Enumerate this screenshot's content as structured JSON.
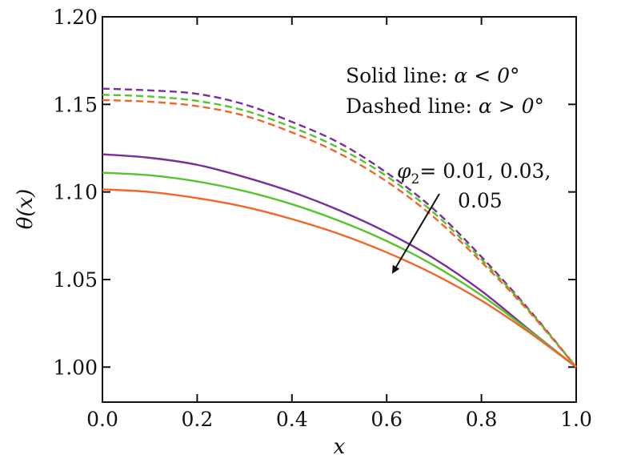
{
  "chart_data": {
    "type": "line",
    "xlabel": "x",
    "ylabel": "θ(x)",
    "xlim": [
      0.0,
      1.0
    ],
    "ylim": [
      0.98,
      1.2
    ],
    "x_ticks": [
      "0.0",
      "0.2",
      "0.4",
      "0.6",
      "0.8",
      "1.0"
    ],
    "y_ticks": [
      "1.00",
      "1.05",
      "1.10",
      "1.15",
      "1.20"
    ],
    "x": [
      0.0,
      0.1,
      0.2,
      0.3,
      0.4,
      0.5,
      0.6,
      0.7,
      0.8,
      0.9,
      1.0
    ],
    "series": [
      {
        "style": "solid",
        "color": "#7b2d9e",
        "values": [
          1.1215,
          1.1195,
          1.1155,
          1.1085,
          1.1,
          1.0895,
          1.077,
          1.062,
          1.0435,
          1.0215,
          1.0
        ]
      },
      {
        "style": "solid",
        "color": "#56c42c",
        "values": [
          1.111,
          1.1095,
          1.106,
          1.1005,
          1.093,
          1.0835,
          1.072,
          1.058,
          1.041,
          1.021,
          1.0
        ]
      },
      {
        "style": "solid",
        "color": "#f0672a",
        "values": [
          1.1015,
          1.1,
          1.0965,
          1.0915,
          1.0845,
          1.076,
          1.0655,
          1.053,
          1.038,
          1.02,
          1.0
        ]
      },
      {
        "style": "dashed",
        "color": "#7b2d9e",
        "values": [
          1.159,
          1.158,
          1.156,
          1.15,
          1.14,
          1.128,
          1.111,
          1.09,
          1.063,
          1.033,
          1.0
        ]
      },
      {
        "style": "dashed",
        "color": "#56c42c",
        "values": [
          1.1555,
          1.1545,
          1.152,
          1.1465,
          1.137,
          1.125,
          1.109,
          1.088,
          1.0615,
          1.0325,
          1.0
        ]
      },
      {
        "style": "dashed",
        "color": "#f0672a",
        "values": [
          1.1525,
          1.1515,
          1.149,
          1.1435,
          1.134,
          1.122,
          1.106,
          1.0855,
          1.06,
          1.0318,
          1.0
        ]
      }
    ],
    "annotations": {
      "solid_label_prefix": "Solid line: ",
      "solid_label_expr": "α < 0°",
      "dashed_label_prefix": "Dashed line: ",
      "dashed_label_expr": "α > 0°",
      "phi_symbol": "φ",
      "phi_subscript": "2",
      "phi_values_line1": "= 0.01, 0.03,",
      "phi_values_line2": "0.05"
    },
    "grid": false,
    "legend": "none"
  }
}
